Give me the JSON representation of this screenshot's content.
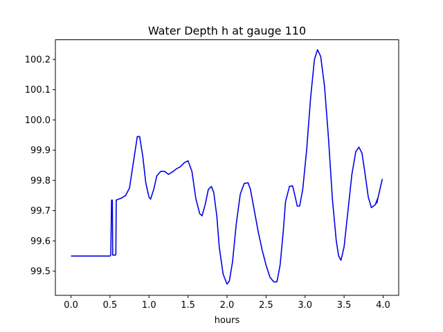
{
  "chart_data": {
    "type": "line",
    "title": "Water Depth h at gauge 110",
    "xlabel": "hours",
    "ylabel": "",
    "xlim": [
      -0.2,
      4.2
    ],
    "ylim": [
      99.42,
      100.265
    ],
    "xticks": [
      0.0,
      0.5,
      1.0,
      1.5,
      2.0,
      2.5,
      3.0,
      3.5,
      4.0
    ],
    "xtick_labels": [
      "0.0",
      "0.5",
      "1.0",
      "1.5",
      "2.0",
      "2.5",
      "3.0",
      "3.5",
      "4.0"
    ],
    "yticks": [
      99.5,
      99.6,
      99.7,
      99.8,
      99.9,
      100.0,
      100.1,
      100.2
    ],
    "ytick_labels": [
      "99.5",
      "99.6",
      "99.7",
      "99.8",
      "99.9",
      "100.0",
      "100.1",
      "100.2"
    ],
    "grid": false,
    "series": [
      {
        "color": "#0000e6",
        "x": [
          0.0,
          0.5,
          0.51,
          0.52,
          0.53,
          0.535,
          0.545,
          0.55,
          0.56,
          0.57,
          0.575,
          0.58,
          0.65,
          0.7,
          0.75,
          0.8,
          0.85,
          0.88,
          0.92,
          0.96,
          1.0,
          1.02,
          1.06,
          1.1,
          1.15,
          1.2,
          1.25,
          1.3,
          1.35,
          1.4,
          1.45,
          1.5,
          1.55,
          1.6,
          1.65,
          1.68,
          1.72,
          1.76,
          1.8,
          1.83,
          1.87,
          1.9,
          1.95,
          2.0,
          2.03,
          2.07,
          2.12,
          2.17,
          2.22,
          2.27,
          2.3,
          2.35,
          2.4,
          2.45,
          2.5,
          2.55,
          2.6,
          2.64,
          2.68,
          2.72,
          2.75,
          2.8,
          2.84,
          2.87,
          2.9,
          2.93,
          2.97,
          3.02,
          3.07,
          3.12,
          3.16,
          3.2,
          3.25,
          3.3,
          3.35,
          3.4,
          3.43,
          3.46,
          3.5,
          3.55,
          3.6,
          3.65,
          3.69,
          3.73,
          3.77,
          3.81,
          3.85,
          3.9,
          3.93,
          3.92,
          3.95,
          3.99
        ],
        "y": [
          99.55,
          99.55,
          99.553,
          99.735,
          99.735,
          99.553,
          99.553,
          99.553,
          99.553,
          99.553,
          99.555,
          99.735,
          99.742,
          99.75,
          99.775,
          99.86,
          99.945,
          99.945,
          99.88,
          99.79,
          99.745,
          99.738,
          99.77,
          99.815,
          99.83,
          99.83,
          99.82,
          99.828,
          99.838,
          99.845,
          99.858,
          99.865,
          99.83,
          99.74,
          99.69,
          99.683,
          99.72,
          99.77,
          99.78,
          99.76,
          99.68,
          99.58,
          99.49,
          99.457,
          99.468,
          99.53,
          99.66,
          99.755,
          99.79,
          99.792,
          99.77,
          99.7,
          99.63,
          99.57,
          99.52,
          99.48,
          99.464,
          99.465,
          99.52,
          99.63,
          99.73,
          99.78,
          99.782,
          99.75,
          99.715,
          99.715,
          99.77,
          99.9,
          100.07,
          100.2,
          100.232,
          100.21,
          100.11,
          99.94,
          99.74,
          99.6,
          99.55,
          99.536,
          99.58,
          99.7,
          99.82,
          99.895,
          99.91,
          99.89,
          99.82,
          99.745,
          99.71,
          99.72,
          99.74,
          99.725,
          99.76,
          99.805
        ]
      }
    ]
  }
}
